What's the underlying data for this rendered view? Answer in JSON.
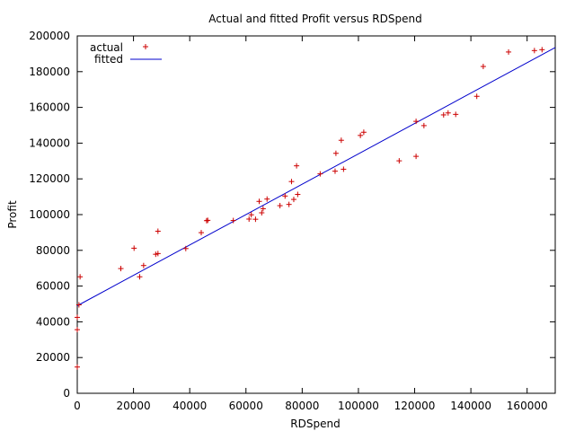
{
  "chart_data": {
    "type": "scatter",
    "title": "Actual and fitted Profit versus RDSpend",
    "xlabel": "RDSpend",
    "ylabel": "Profit",
    "xlim": [
      0,
      170000
    ],
    "ylim": [
      0,
      200000
    ],
    "xticks": [
      0,
      20000,
      40000,
      60000,
      80000,
      100000,
      120000,
      140000,
      160000
    ],
    "yticks": [
      0,
      20000,
      40000,
      60000,
      80000,
      100000,
      120000,
      140000,
      160000,
      180000,
      200000
    ],
    "grid": false,
    "legend_position": "top-left",
    "series": [
      {
        "name": "actual",
        "kind": "points",
        "marker": "+",
        "color": "#cc0000",
        "points": [
          [
            0,
            14700
          ],
          [
            0,
            35600
          ],
          [
            0,
            42500
          ],
          [
            600,
            49500
          ],
          [
            1000,
            65200
          ],
          [
            15500,
            69800
          ],
          [
            20200,
            81200
          ],
          [
            22200,
            65200
          ],
          [
            23600,
            71500
          ],
          [
            27900,
            77800
          ],
          [
            28700,
            78200
          ],
          [
            28700,
            90700
          ],
          [
            38600,
            81000
          ],
          [
            44100,
            89900
          ],
          [
            46000,
            96600
          ],
          [
            46400,
            96800
          ],
          [
            55500,
            96700
          ],
          [
            61100,
            97500
          ],
          [
            61900,
            99900
          ],
          [
            63400,
            97400
          ],
          [
            64700,
            107400
          ],
          [
            65600,
            101000
          ],
          [
            66100,
            103300
          ],
          [
            67500,
            108700
          ],
          [
            72100,
            105000
          ],
          [
            73900,
            110400
          ],
          [
            75300,
            105700
          ],
          [
            76200,
            118500
          ],
          [
            77000,
            108500
          ],
          [
            78000,
            127300
          ],
          [
            78400,
            111300
          ],
          [
            86400,
            122800
          ],
          [
            91700,
            124300
          ],
          [
            92000,
            134300
          ],
          [
            93900,
            141600
          ],
          [
            94700,
            125400
          ],
          [
            100700,
            144300
          ],
          [
            101900,
            146100
          ],
          [
            114500,
            130100
          ],
          [
            120500,
            132600
          ],
          [
            120500,
            152200
          ],
          [
            123300,
            149800
          ],
          [
            130300,
            155800
          ],
          [
            131900,
            156900
          ],
          [
            134600,
            156100
          ],
          [
            142100,
            166200
          ],
          [
            144400,
            182900
          ],
          [
            153400,
            191000
          ],
          [
            162600,
            191800
          ],
          [
            165300,
            192300
          ]
        ]
      },
      {
        "name": "fitted",
        "kind": "line",
        "color": "#0000cc",
        "points": [
          [
            0,
            49000
          ],
          [
            170000,
            193500
          ]
        ]
      }
    ]
  }
}
